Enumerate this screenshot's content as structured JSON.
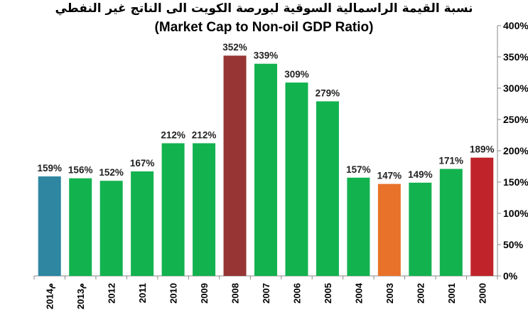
{
  "chart_data": {
    "type": "bar",
    "title": "نسبة القيمة الراسمالية السوقية لبورصة الكويت الى الناتج غير النفطي",
    "subtitle": "(Market Cap to Non-oil GDP Ratio)",
    "categories": [
      "2014م",
      "2013م",
      "2012",
      "2011",
      "2010",
      "2009",
      "2008",
      "2007",
      "2006",
      "2005",
      "2004",
      "2003",
      "2002",
      "2001",
      "2000"
    ],
    "values": [
      159,
      156,
      152,
      167,
      212,
      212,
      352,
      339,
      309,
      279,
      157,
      147,
      149,
      171,
      189
    ],
    "data_labels": [
      "159%",
      "156%",
      "152%",
      "167%",
      "212%",
      "212%",
      "352%",
      "339%",
      "309%",
      "279%",
      "157%",
      "147%",
      "149%",
      "171%",
      "189%"
    ],
    "colors": [
      "#2e86a0",
      "#12b24f",
      "#12b24f",
      "#12b24f",
      "#12b24f",
      "#12b24f",
      "#963534",
      "#12b24f",
      "#12b24f",
      "#12b24f",
      "#12b24f",
      "#e8722a",
      "#12b24f",
      "#12b24f",
      "#c0242a"
    ],
    "ylim": [
      0,
      400
    ],
    "y_ticks": [
      "0%",
      "50%",
      "100%",
      "150%",
      "200%",
      "250%",
      "300%",
      "350%",
      "400%"
    ],
    "y_axis_side": "right",
    "grid": false,
    "legend": "none"
  }
}
